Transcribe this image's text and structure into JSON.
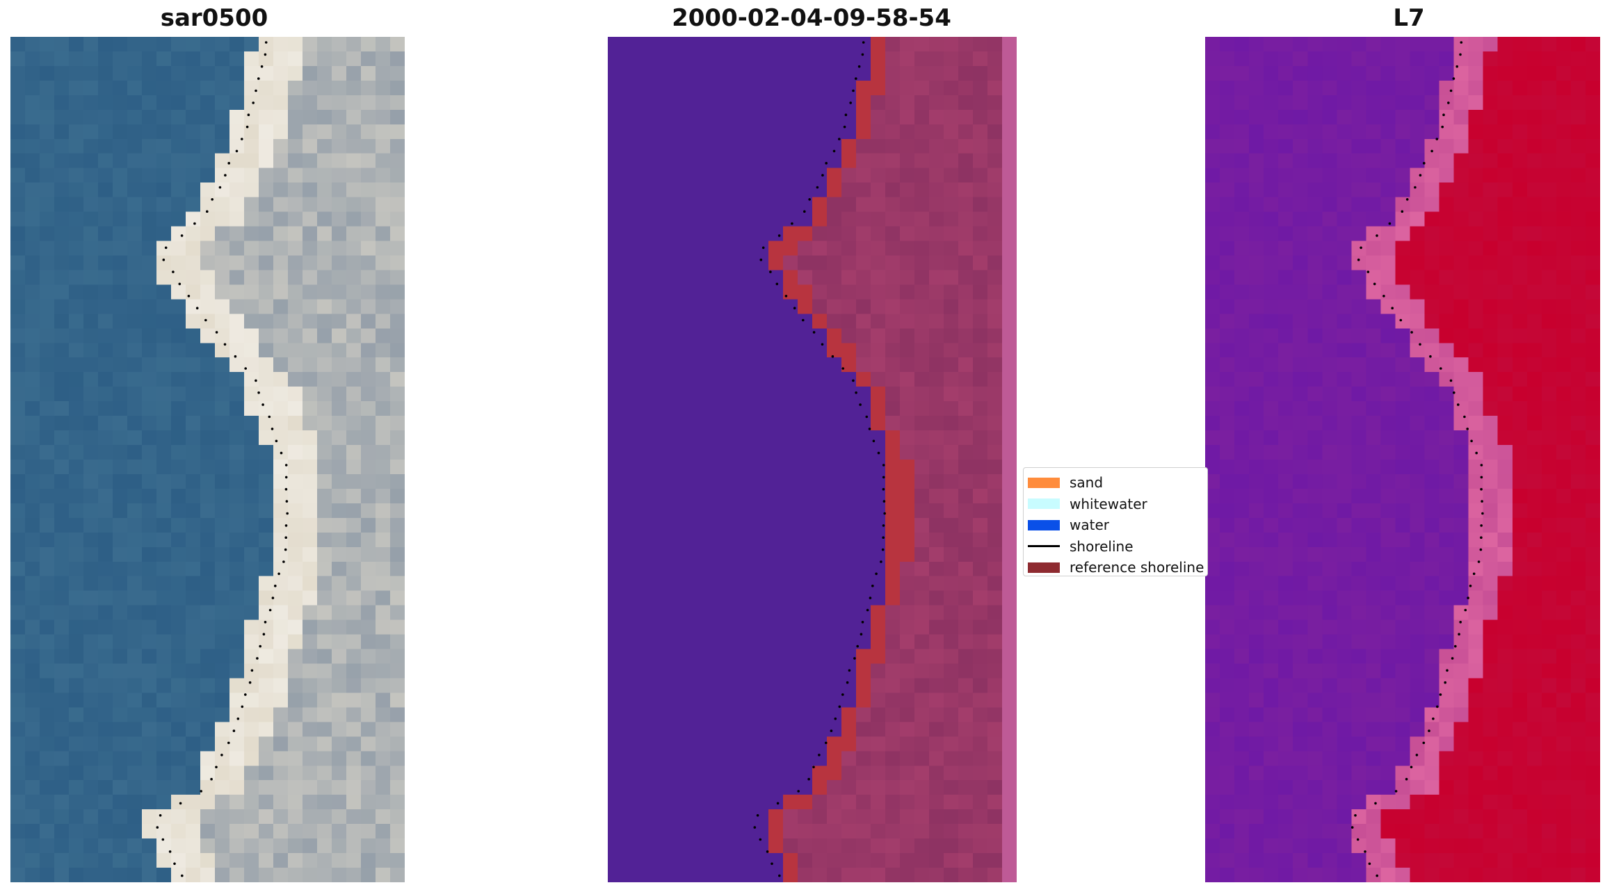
{
  "panels": [
    {
      "title": "sar0500",
      "kind": "rgb"
    },
    {
      "title": "2000-02-04-09-58-54",
      "kind": "classified"
    },
    {
      "title": "L7",
      "kind": "index"
    }
  ],
  "legend": {
    "items": [
      {
        "label": "sand",
        "type": "patch",
        "color": "#ff8c3c"
      },
      {
        "label": "whitewater",
        "type": "patch",
        "color": "#c8fcff"
      },
      {
        "label": "water",
        "type": "patch",
        "color": "#0a50e8"
      },
      {
        "label": "shoreline",
        "type": "line",
        "color": "#000000"
      },
      {
        "label": "reference shoreline",
        "type": "patch",
        "color": "#8e2a30"
      }
    ]
  },
  "colors": {
    "water_class": "#522296",
    "sand_class": "#a33d6b",
    "reference_shoreline": "#b8343f",
    "rgb_water": "#2e5f86",
    "rgb_sand": "#e3dccd",
    "index_low": "#7a1fa0",
    "index_high": "#c8002e"
  }
}
